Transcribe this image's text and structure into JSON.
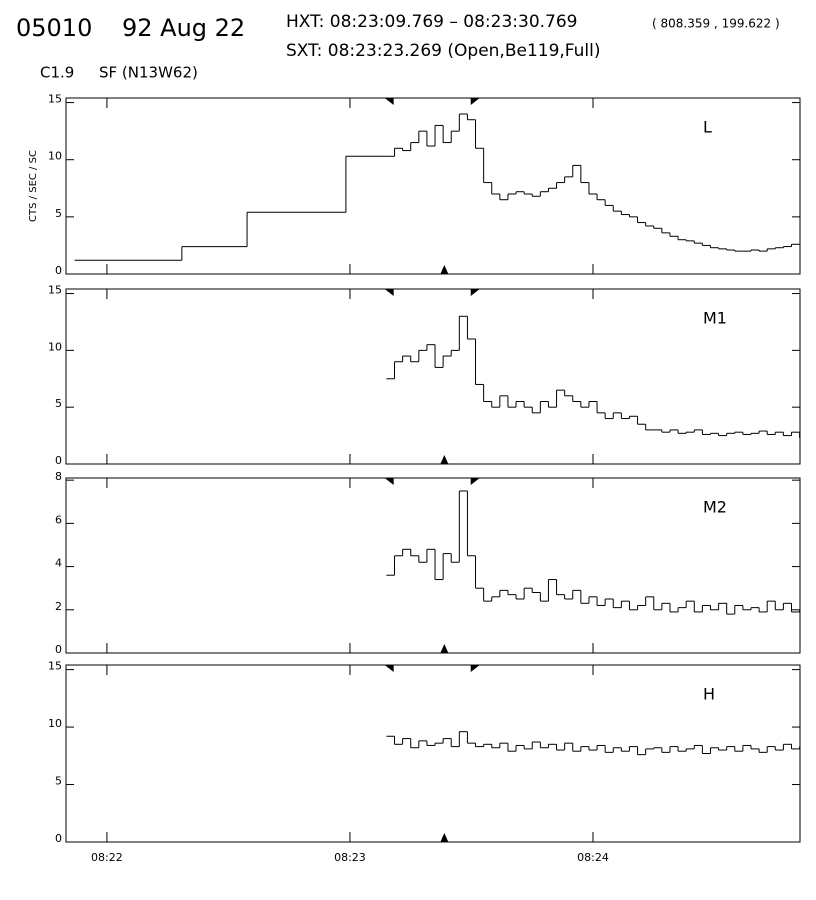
{
  "chart_data": {
    "type": "line",
    "header": {
      "id": "05010",
      "date": "92 Aug 22",
      "hxt": "HXT: 08:23:09.769 – 08:23:30.769",
      "coords": "( 808.359 , 199.622 )",
      "sxt": "SXT: 08:23:23.269 (Open,Be119,Full)",
      "class": "C1.9",
      "flare": "SF (N13W62)"
    },
    "ylabel": "CTS / SEC / SC",
    "xlim": [
      -10.1,
      171.1
    ],
    "xticks": [
      {
        "value": 0,
        "label": "08:22"
      },
      {
        "value": 60,
        "label": "08:23"
      },
      {
        "value": 120,
        "label": "08:24"
      }
    ],
    "hxt_markers": [
      69.8,
      90.8
    ],
    "sxt_marker": 83.3,
    "panels": [
      {
        "name": "L",
        "ylim": [
          0,
          15.4
        ],
        "yticks": [
          0,
          5,
          10,
          15
        ],
        "x": [
          -8,
          18.5,
          34.6,
          59,
          69,
          71,
          73,
          75,
          77,
          79,
          81,
          83,
          85,
          87,
          89,
          91,
          93,
          95,
          97,
          99,
          101,
          103,
          105,
          107,
          109,
          111,
          113,
          115,
          117,
          119,
          121,
          123,
          125,
          127,
          129,
          131,
          133,
          135,
          137,
          139,
          141,
          143,
          145,
          147,
          149,
          151,
          153,
          155,
          157,
          159,
          161,
          163,
          165,
          167,
          169,
          171
        ],
        "values": [
          1.2,
          2.4,
          5.4,
          10.3,
          10.3,
          11,
          10.8,
          11.5,
          12.5,
          11.2,
          13,
          11.5,
          12.5,
          14,
          13.5,
          11,
          8,
          7,
          6.5,
          7,
          7.2,
          7,
          6.8,
          7.2,
          7.5,
          8,
          8.5,
          9.5,
          8,
          7,
          6.5,
          6,
          5.5,
          5.2,
          5,
          4.5,
          4.2,
          4,
          3.6,
          3.3,
          3,
          2.9,
          2.7,
          2.5,
          2.3,
          2.2,
          2.1,
          2,
          2,
          2.1,
          2,
          2.2,
          2.3,
          2.4,
          2.6,
          2.6
        ]
      },
      {
        "name": "M1",
        "ylim": [
          0,
          15.4
        ],
        "yticks": [
          0,
          5,
          10,
          15
        ],
        "x": [
          69,
          71,
          73,
          75,
          77,
          79,
          81,
          83,
          85,
          87,
          89,
          91,
          93,
          95,
          97,
          99,
          101,
          103,
          105,
          107,
          109,
          111,
          113,
          115,
          117,
          119,
          121,
          123,
          125,
          127,
          129,
          131,
          133,
          135,
          137,
          139,
          141,
          143,
          145,
          147,
          149,
          151,
          153,
          155,
          157,
          159,
          161,
          163,
          165,
          167,
          169,
          171
        ],
        "values": [
          7.5,
          9,
          9.5,
          9,
          10,
          10.5,
          8.5,
          9.5,
          10,
          13,
          11,
          7,
          5.5,
          5,
          6,
          5,
          5.5,
          5,
          4.5,
          5.5,
          5,
          6.5,
          6,
          5.5,
          5,
          5.5,
          4.5,
          4,
          4.5,
          4,
          4.2,
          3.5,
          3,
          3,
          2.8,
          3,
          2.7,
          2.8,
          3,
          2.6,
          2.7,
          2.5,
          2.7,
          2.8,
          2.6,
          2.7,
          2.9,
          2.6,
          2.8,
          2.5,
          2.8,
          2.3
        ]
      },
      {
        "name": "M2",
        "ylim": [
          0,
          8.1
        ],
        "yticks": [
          0,
          2,
          4,
          6,
          8
        ],
        "x": [
          69,
          71,
          73,
          75,
          77,
          79,
          81,
          83,
          85,
          87,
          89,
          91,
          93,
          95,
          97,
          99,
          101,
          103,
          105,
          107,
          109,
          111,
          113,
          115,
          117,
          119,
          121,
          123,
          125,
          127,
          129,
          131,
          133,
          135,
          137,
          139,
          141,
          143,
          145,
          147,
          149,
          151,
          153,
          155,
          157,
          159,
          161,
          163,
          165,
          167,
          169,
          171
        ],
        "values": [
          3.6,
          4.5,
          4.8,
          4.5,
          4.2,
          4.8,
          3.4,
          4.6,
          4.2,
          7.5,
          4.5,
          3,
          2.4,
          2.6,
          2.9,
          2.7,
          2.5,
          3,
          2.8,
          2.4,
          3.4,
          2.7,
          2.5,
          2.9,
          2.3,
          2.6,
          2.2,
          2.5,
          2.1,
          2.4,
          2,
          2.2,
          2.6,
          2,
          2.3,
          1.9,
          2.1,
          2.4,
          1.9,
          2.2,
          2,
          2.3,
          1.8,
          2.2,
          2,
          2.1,
          1.9,
          2.4,
          2,
          2.3,
          1.9,
          2
        ]
      },
      {
        "name": "H",
        "ylim": [
          0,
          15.4
        ],
        "yticks": [
          0,
          5,
          10,
          15
        ],
        "x": [
          69,
          71,
          73,
          75,
          77,
          79,
          81,
          83,
          85,
          87,
          89,
          91,
          93,
          95,
          97,
          99,
          101,
          103,
          105,
          107,
          109,
          111,
          113,
          115,
          117,
          119,
          121,
          123,
          125,
          127,
          129,
          131,
          133,
          135,
          137,
          139,
          141,
          143,
          145,
          147,
          149,
          151,
          153,
          155,
          157,
          159,
          161,
          163,
          165,
          167,
          169,
          171
        ],
        "values": [
          9.2,
          8.5,
          9,
          8.2,
          8.8,
          8.4,
          8.6,
          9,
          8.3,
          9.6,
          8.6,
          8.3,
          8.5,
          8.2,
          8.6,
          7.9,
          8.4,
          8.1,
          8.7,
          8.2,
          8.5,
          8,
          8.6,
          7.9,
          8.3,
          8,
          8.4,
          7.8,
          8.2,
          7.9,
          8.3,
          7.6,
          8.1,
          8.2,
          7.8,
          8.3,
          7.9,
          8.1,
          8.4,
          7.7,
          8.2,
          8,
          8.3,
          7.9,
          8.4,
          8.1,
          7.8,
          8.3,
          8,
          8.5,
          8.1,
          8.3
        ]
      }
    ]
  }
}
